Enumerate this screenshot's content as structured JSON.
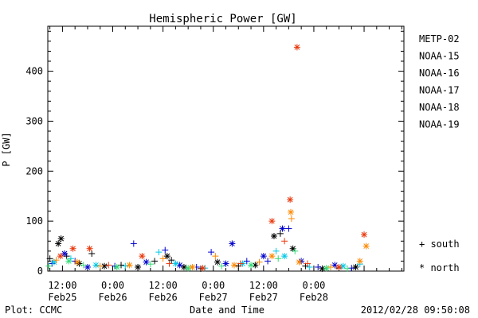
{
  "chart_data": {
    "type": "scatter",
    "title": "Hemispheric Power [GW]",
    "xlabel": "Date and Time",
    "ylabel": "P [GW]",
    "ylim": [
      0,
      490
    ],
    "xlim": [
      "2012-02-25T08:30",
      "2012-02-28T21:30"
    ],
    "yticks": [
      0,
      100,
      200,
      300,
      400
    ],
    "xticks": [
      {
        "time": "2012-02-25T12:00",
        "line1": "12:00",
        "line2": "Feb25"
      },
      {
        "time": "2012-02-26T00:00",
        "line1": "0:00",
        "line2": "Feb26"
      },
      {
        "time": "2012-02-26T12:00",
        "line1": "12:00",
        "line2": "Feb26"
      },
      {
        "time": "2012-02-27T00:00",
        "line1": "0:00",
        "line2": "Feb27"
      },
      {
        "time": "2012-02-27T12:00",
        "line1": "12:00",
        "line2": "Feb27"
      },
      {
        "time": "2012-02-28T00:00",
        "line1": "0:00",
        "line2": "Feb28"
      }
    ],
    "grid": false,
    "legend_position": "right",
    "markers": {
      "south": "+",
      "north": "*"
    },
    "marker_legend": [
      {
        "symbol": "+",
        "label": "south"
      },
      {
        "symbol": "*",
        "label": "north"
      }
    ],
    "series": [
      {
        "name": "METP-02",
        "color": "#000000",
        "points": [
          {
            "x": "2012-02-25T09:00",
            "y": 25,
            "h": "south"
          },
          {
            "x": "2012-02-25T11:00",
            "y": 55,
            "h": "north"
          },
          {
            "x": "2012-02-25T11:40",
            "y": 65,
            "h": "north"
          },
          {
            "x": "2012-02-25T13:00",
            "y": 30,
            "h": "south"
          },
          {
            "x": "2012-02-25T16:00",
            "y": 15,
            "h": "north"
          },
          {
            "x": "2012-02-25T19:00",
            "y": 35,
            "h": "south"
          },
          {
            "x": "2012-02-25T22:00",
            "y": 10,
            "h": "north"
          },
          {
            "x": "2012-02-26T02:00",
            "y": 12,
            "h": "south"
          },
          {
            "x": "2012-02-26T06:00",
            "y": 8,
            "h": "north"
          },
          {
            "x": "2012-02-26T10:00",
            "y": 20,
            "h": "south"
          },
          {
            "x": "2012-02-26T13:00",
            "y": 30,
            "h": "north"
          },
          {
            "x": "2012-02-26T14:00",
            "y": 22,
            "h": "south"
          },
          {
            "x": "2012-02-26T17:00",
            "y": 8,
            "h": "north"
          },
          {
            "x": "2012-02-26T21:00",
            "y": 5,
            "h": "south"
          },
          {
            "x": "2012-02-27T01:00",
            "y": 18,
            "h": "north"
          },
          {
            "x": "2012-02-27T06:00",
            "y": 10,
            "h": "south"
          },
          {
            "x": "2012-02-27T10:00",
            "y": 12,
            "h": "north"
          },
          {
            "x": "2012-02-27T14:30",
            "y": 70,
            "h": "north"
          },
          {
            "x": "2012-02-27T16:00",
            "y": 75,
            "h": "south"
          },
          {
            "x": "2012-02-27T19:00",
            "y": 45,
            "h": "north"
          },
          {
            "x": "2012-02-27T22:00",
            "y": 10,
            "h": "south"
          },
          {
            "x": "2012-02-28T02:00",
            "y": 5,
            "h": "north"
          },
          {
            "x": "2012-02-28T06:00",
            "y": 6,
            "h": "south"
          },
          {
            "x": "2012-02-28T10:00",
            "y": 8,
            "h": "north"
          }
        ]
      },
      {
        "name": "NOAA-15",
        "color": "#0000cc",
        "points": [
          {
            "x": "2012-02-25T09:30",
            "y": 15,
            "h": "south"
          },
          {
            "x": "2012-02-25T12:30",
            "y": 35,
            "h": "north"
          },
          {
            "x": "2012-02-25T15:00",
            "y": 20,
            "h": "south"
          },
          {
            "x": "2012-02-25T18:00",
            "y": 8,
            "h": "north"
          },
          {
            "x": "2012-02-26T00:30",
            "y": 10,
            "h": "south"
          },
          {
            "x": "2012-02-26T05:00",
            "y": 55,
            "h": "south"
          },
          {
            "x": "2012-02-26T08:00",
            "y": 18,
            "h": "north"
          },
          {
            "x": "2012-02-26T12:30",
            "y": 42,
            "h": "south"
          },
          {
            "x": "2012-02-26T16:00",
            "y": 12,
            "h": "north"
          },
          {
            "x": "2012-02-26T20:00",
            "y": 8,
            "h": "south"
          },
          {
            "x": "2012-02-26T23:30",
            "y": 38,
            "h": "south"
          },
          {
            "x": "2012-02-27T03:00",
            "y": 15,
            "h": "north"
          },
          {
            "x": "2012-02-27T04:30",
            "y": 55,
            "h": "north"
          },
          {
            "x": "2012-02-27T08:00",
            "y": 20,
            "h": "south"
          },
          {
            "x": "2012-02-27T12:00",
            "y": 30,
            "h": "north"
          },
          {
            "x": "2012-02-27T13:00",
            "y": 20,
            "h": "south"
          },
          {
            "x": "2012-02-27T16:30",
            "y": 85,
            "h": "north"
          },
          {
            "x": "2012-02-27T18:00",
            "y": 85,
            "h": "south"
          },
          {
            "x": "2012-02-27T21:00",
            "y": 20,
            "h": "north"
          },
          {
            "x": "2012-02-28T01:00",
            "y": 8,
            "h": "south"
          },
          {
            "x": "2012-02-28T05:00",
            "y": 12,
            "h": "north"
          },
          {
            "x": "2012-02-28T09:00",
            "y": 6,
            "h": "south"
          }
        ]
      },
      {
        "name": "NOAA-16",
        "color": "#00c8e6",
        "points": [
          {
            "x": "2012-02-25T10:00",
            "y": 18,
            "h": "north"
          },
          {
            "x": "2012-02-25T14:00",
            "y": 25,
            "h": "south"
          },
          {
            "x": "2012-02-25T20:00",
            "y": 12,
            "h": "north"
          },
          {
            "x": "2012-02-26T03:00",
            "y": 10,
            "h": "south"
          },
          {
            "x": "2012-02-26T11:00",
            "y": 38,
            "h": "south"
          },
          {
            "x": "2012-02-26T15:00",
            "y": 15,
            "h": "north"
          },
          {
            "x": "2012-02-26T22:00",
            "y": 6,
            "h": "south"
          },
          {
            "x": "2012-02-27T07:00",
            "y": 15,
            "h": "north"
          },
          {
            "x": "2012-02-27T15:00",
            "y": 40,
            "h": "south"
          },
          {
            "x": "2012-02-27T17:00",
            "y": 30,
            "h": "north"
          },
          {
            "x": "2012-02-27T23:00",
            "y": 8,
            "h": "south"
          },
          {
            "x": "2012-02-28T07:00",
            "y": 10,
            "h": "north"
          },
          {
            "x": "2012-02-28T11:00",
            "y": 14,
            "h": "south"
          }
        ]
      },
      {
        "name": "NOAA-17",
        "color": "#33dd77",
        "points": [
          {
            "x": "2012-02-25T08:45",
            "y": 10,
            "h": "south"
          },
          {
            "x": "2012-02-25T13:30",
            "y": 20,
            "h": "north"
          },
          {
            "x": "2012-02-25T17:00",
            "y": 12,
            "h": "south"
          },
          {
            "x": "2012-02-26T01:00",
            "y": 8,
            "h": "north"
          },
          {
            "x": "2012-02-26T09:00",
            "y": 14,
            "h": "south"
          },
          {
            "x": "2012-02-26T18:00",
            "y": 6,
            "h": "north"
          },
          {
            "x": "2012-02-27T02:00",
            "y": 10,
            "h": "south"
          },
          {
            "x": "2012-02-27T09:00",
            "y": 12,
            "h": "north"
          },
          {
            "x": "2012-02-27T15:30",
            "y": 25,
            "h": "south"
          },
          {
            "x": "2012-02-27T19:30",
            "y": 40,
            "h": "south"
          },
          {
            "x": "2012-02-28T03:00",
            "y": 6,
            "h": "north"
          },
          {
            "x": "2012-02-28T08:00",
            "y": 5,
            "h": "south"
          }
        ]
      },
      {
        "name": "NOAA-18",
        "color": "#ff8800",
        "points": [
          {
            "x": "2012-02-25T10:30",
            "y": 22,
            "h": "south"
          },
          {
            "x": "2012-02-25T15:30",
            "y": 18,
            "h": "north"
          },
          {
            "x": "2012-02-25T21:00",
            "y": 10,
            "h": "south"
          },
          {
            "x": "2012-02-26T04:00",
            "y": 12,
            "h": "north"
          },
          {
            "x": "2012-02-26T12:00",
            "y": 25,
            "h": "south"
          },
          {
            "x": "2012-02-26T19:00",
            "y": 8,
            "h": "north"
          },
          {
            "x": "2012-02-27T00:30",
            "y": 30,
            "h": "south"
          },
          {
            "x": "2012-02-27T05:00",
            "y": 12,
            "h": "north"
          },
          {
            "x": "2012-02-27T11:00",
            "y": 18,
            "h": "south"
          },
          {
            "x": "2012-02-27T14:00",
            "y": 30,
            "h": "north"
          },
          {
            "x": "2012-02-27T18:30",
            "y": 118,
            "h": "north"
          },
          {
            "x": "2012-02-27T18:40",
            "y": 105,
            "h": "south"
          },
          {
            "x": "2012-02-27T20:30",
            "y": 18,
            "h": "north"
          },
          {
            "x": "2012-02-28T04:00",
            "y": 8,
            "h": "south"
          },
          {
            "x": "2012-02-28T11:00",
            "y": 20,
            "h": "north"
          },
          {
            "x": "2012-02-28T12:30",
            "y": 50,
            "h": "north"
          }
        ]
      },
      {
        "name": "NOAA-19",
        "color": "#e8380d",
        "points": [
          {
            "x": "2012-02-25T11:30",
            "y": 30,
            "h": "north"
          },
          {
            "x": "2012-02-25T14:30",
            "y": 45,
            "h": "north"
          },
          {
            "x": "2012-02-25T18:30",
            "y": 45,
            "h": "north"
          },
          {
            "x": "2012-02-25T23:00",
            "y": 12,
            "h": "south"
          },
          {
            "x": "2012-02-26T07:00",
            "y": 30,
            "h": "north"
          },
          {
            "x": "2012-02-26T13:30",
            "y": 15,
            "h": "south"
          },
          {
            "x": "2012-02-26T21:30",
            "y": 6,
            "h": "north"
          },
          {
            "x": "2012-02-27T06:30",
            "y": 15,
            "h": "south"
          },
          {
            "x": "2012-02-27T14:00",
            "y": 100,
            "h": "north"
          },
          {
            "x": "2012-02-27T17:00",
            "y": 60,
            "h": "south"
          },
          {
            "x": "2012-02-27T18:20",
            "y": 143,
            "h": "north"
          },
          {
            "x": "2012-02-27T20:00",
            "y": 448,
            "h": "north"
          },
          {
            "x": "2012-02-27T22:30",
            "y": 15,
            "h": "south"
          },
          {
            "x": "2012-02-28T06:00",
            "y": 8,
            "h": "north"
          },
          {
            "x": "2012-02-28T12:00",
            "y": 73,
            "h": "north"
          }
        ]
      }
    ]
  },
  "footer": {
    "left": "Plot: CCMC",
    "right": "2012/02/28 09:50:08"
  }
}
